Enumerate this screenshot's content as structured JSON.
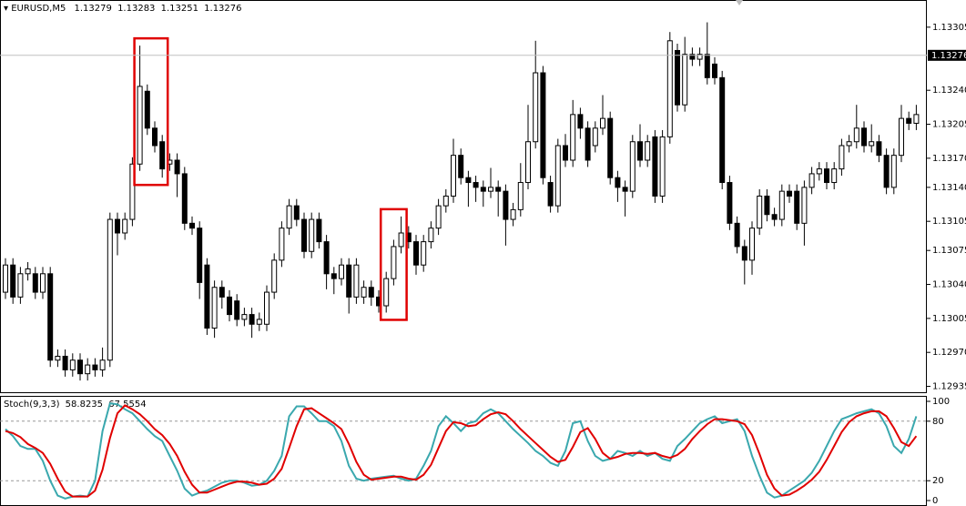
{
  "chart_data": [
    {
      "type": "candlestick",
      "title": "EURUSD,M5",
      "ohlc": [
        1.13279,
        1.13283,
        1.13251,
        1.13276
      ],
      "open": [
        1.13032,
        1.1306,
        1.13027,
        1.13051,
        1.13051,
        1.13032,
        1.13051,
        1.12962,
        1.12966,
        1.12952,
        1.12962,
        1.12948,
        1.12957,
        1.12952,
        1.12962,
        1.13107,
        1.13093,
        1.13107,
        1.13164,
        1.13239,
        1.13201,
        1.13187,
        1.13164,
        1.13168,
        1.13154,
        1.13103,
        1.13098,
        1.1306,
        1.12995,
        1.13037,
        1.13027,
        1.13023,
        1.13004,
        1.13009,
        1.12999,
        1.12999,
        1.13032,
        1.13065,
        1.13098,
        1.13121,
        1.13107,
        1.13074,
        1.13107,
        1.13084,
        1.13051,
        1.13046,
        1.1306,
        1.13027,
        1.13027,
        1.13037,
        1.13027,
        1.13018,
        1.13046,
        1.13079,
        1.13093,
        1.13084,
        1.1306,
        1.13084,
        1.13098,
        1.13121,
        1.13131,
        1.13173,
        1.1315,
        1.13145,
        1.1314,
        1.13136,
        1.1314,
        1.13136,
        1.13107,
        1.13117,
        1.13145,
        1.13187,
        1.13258,
        1.13145,
        1.13121,
        1.13183,
        1.13168,
        1.13215,
        1.13201,
        1.13183,
        1.13201,
        1.13211,
        1.1315,
        1.1314,
        1.13136,
        1.13187,
        1.13168,
        1.13192,
        1.13131,
        1.13192,
        1.13281,
        1.13225,
        1.13277,
        1.13272,
        1.13277,
        1.13267,
        1.13253,
        1.13145,
        1.13103,
        1.13079,
        1.13065,
        1.13098,
        1.13131,
        1.13112,
        1.13107,
        1.13136,
        1.13136,
        1.13103,
        1.1314,
        1.13154,
        1.13159,
        1.13145,
        1.13159,
        1.13183,
        1.13187,
        1.13201,
        1.13183,
        1.13187,
        1.13173,
        1.1314,
        1.13173,
        1.13211,
        1.13206
      ],
      "high": [
        1.13067,
        1.13067,
        1.13058,
        1.13063,
        1.13058,
        1.13058,
        1.13058,
        1.12973,
        1.12973,
        1.12969,
        1.12969,
        1.12964,
        1.12964,
        1.12975,
        1.13114,
        1.13114,
        1.13114,
        1.13171,
        1.13286,
        1.13246,
        1.13208,
        1.13194,
        1.13175,
        1.13175,
        1.13161,
        1.1311,
        1.13105,
        1.13067,
        1.13044,
        1.13044,
        1.13034,
        1.1303,
        1.13016,
        1.13016,
        1.13011,
        1.13039,
        1.13072,
        1.13105,
        1.13128,
        1.13128,
        1.13114,
        1.13114,
        1.13114,
        1.13091,
        1.13058,
        1.13067,
        1.13067,
        1.13067,
        1.13044,
        1.13044,
        1.13034,
        1.13053,
        1.13086,
        1.1311,
        1.131,
        1.13091,
        1.13091,
        1.13105,
        1.13128,
        1.13138,
        1.1319,
        1.1318,
        1.13157,
        1.13152,
        1.13147,
        1.1316,
        1.13147,
        1.13143,
        1.13124,
        1.13165,
        1.13225,
        1.13291,
        1.13265,
        1.13152,
        1.1319,
        1.13195,
        1.1323,
        1.13222,
        1.13208,
        1.13208,
        1.13235,
        1.13218,
        1.13157,
        1.13147,
        1.13194,
        1.13205,
        1.13194,
        1.13199,
        1.13199,
        1.133,
        1.13288,
        1.13295,
        1.13284,
        1.13284,
        1.1331,
        1.13274,
        1.1326,
        1.13152,
        1.1311,
        1.13086,
        1.13105,
        1.13138,
        1.13138,
        1.13119,
        1.13143,
        1.13143,
        1.13143,
        1.13147,
        1.13161,
        1.13166,
        1.13166,
        1.13166,
        1.1319,
        1.13194,
        1.13225,
        1.13208,
        1.13205,
        1.13194,
        1.1318,
        1.1318,
        1.13225,
        1.13218,
        1.13225
      ],
      "low": [
        1.13025,
        1.1302,
        1.1302,
        1.13044,
        1.13025,
        1.13025,
        1.12955,
        1.12955,
        1.12945,
        1.12945,
        1.12941,
        1.12941,
        1.12945,
        1.12945,
        1.12955,
        1.1307,
        1.13086,
        1.131,
        1.13157,
        1.13194,
        1.13176,
        1.1315,
        1.13157,
        1.1313,
        1.13096,
        1.13091,
        1.13025,
        1.12988,
        1.12985,
        1.13015,
        1.13002,
        1.12997,
        1.12997,
        1.12985,
        1.12992,
        1.12992,
        1.13025,
        1.13058,
        1.13091,
        1.131,
        1.13067,
        1.13067,
        1.13077,
        1.13035,
        1.1303,
        1.13039,
        1.1301,
        1.1302,
        1.1302,
        1.13018,
        1.13011,
        1.13011,
        1.13039,
        1.13072,
        1.13077,
        1.1305,
        1.13053,
        1.13077,
        1.13091,
        1.13114,
        1.13124,
        1.13143,
        1.1312,
        1.13125,
        1.1312,
        1.13129,
        1.1311,
        1.1308,
        1.131,
        1.1311,
        1.13138,
        1.1318,
        1.13143,
        1.13114,
        1.13114,
        1.13161,
        1.13161,
        1.1319,
        1.13161,
        1.13176,
        1.13194,
        1.13143,
        1.13125,
        1.1311,
        1.13129,
        1.13161,
        1.13161,
        1.13124,
        1.13124,
        1.13185,
        1.13218,
        1.13218,
        1.13265,
        1.13265,
        1.13246,
        1.13246,
        1.13138,
        1.13096,
        1.13072,
        1.1304,
        1.1305,
        1.13091,
        1.13105,
        1.131,
        1.131,
        1.13124,
        1.13096,
        1.1308,
        1.13133,
        1.13147,
        1.13138,
        1.13138,
        1.13152,
        1.13176,
        1.1318,
        1.13176,
        1.13176,
        1.13166,
        1.13133,
        1.13133,
        1.13166,
        1.13199,
        1.13199
      ],
      "close": [
        1.1306,
        1.13027,
        1.13051,
        1.13056,
        1.13032,
        1.13051,
        1.12962,
        1.12966,
        1.12952,
        1.12962,
        1.12948,
        1.12957,
        1.12952,
        1.12962,
        1.13107,
        1.13093,
        1.13107,
        1.13164,
        1.13244,
        1.13201,
        1.13183,
        1.13159,
        1.13168,
        1.13154,
        1.13103,
        1.13098,
        1.13042,
        1.12995,
        1.13037,
        1.13027,
        1.13009,
        1.13004,
        1.13009,
        1.12999,
        1.13004,
        1.13032,
        1.13065,
        1.13098,
        1.13121,
        1.13107,
        1.13074,
        1.13107,
        1.13084,
        1.13051,
        1.13046,
        1.1306,
        1.13027,
        1.1306,
        1.13037,
        1.13027,
        1.13018,
        1.13046,
        1.13079,
        1.13093,
        1.13084,
        1.1306,
        1.13084,
        1.13098,
        1.13121,
        1.13131,
        1.13173,
        1.1315,
        1.13145,
        1.1314,
        1.13136,
        1.1314,
        1.13136,
        1.13107,
        1.13117,
        1.13145,
        1.13187,
        1.13258,
        1.1315,
        1.13121,
        1.13183,
        1.13168,
        1.13215,
        1.13201,
        1.13168,
        1.13201,
        1.13211,
        1.1315,
        1.1314,
        1.13136,
        1.13187,
        1.13168,
        1.13187,
        1.13131,
        1.13192,
        1.13291,
        1.13225,
        1.13277,
        1.13272,
        1.13277,
        1.13253,
        1.13253,
        1.13145,
        1.13103,
        1.13079,
        1.13065,
        1.13098,
        1.13131,
        1.13112,
        1.13107,
        1.13136,
        1.13131,
        1.13103,
        1.1314,
        1.13154,
        1.13159,
        1.13145,
        1.13159,
        1.13183,
        1.13187,
        1.13201,
        1.13183,
        1.13187,
        1.13173,
        1.1314,
        1.13173,
        1.13211,
        1.13206,
        1.13215
      ],
      "current_price": 1.13276,
      "up_color": "#ffffff",
      "down_color": "#000000",
      "line_color": "#000000",
      "ylim": [
        1.12928,
        1.13333
      ],
      "yticks": [
        1.13305,
        {
          "value": 1.1324,
          "label": "1.13240"
        },
        1.13205,
        {
          "value": 1.1317,
          "label": "1.13170"
        },
        {
          "value": 1.1314,
          "label": "1.13140"
        },
        1.13105,
        1.13075,
        {
          "value": 1.1304,
          "label": "1.13040"
        },
        1.13005,
        {
          "value": 1.1297,
          "label": "1.12970"
        },
        1.12935
      ]
    },
    {
      "type": "line",
      "title": "Stoch(9,3,3)",
      "readings": [
        58.8235,
        67.5554
      ],
      "series": [
        {
          "color": "#3aa8ae",
          "values": [
            72,
            65,
            55,
            52,
            52,
            40,
            20,
            5,
            2,
            4,
            5,
            4,
            20,
            70,
            98,
            97,
            92,
            88,
            80,
            72,
            65,
            60,
            45,
            30,
            12,
            5,
            8,
            10,
            14,
            18,
            20,
            20,
            18,
            15,
            16,
            20,
            30,
            45,
            85,
            95,
            95,
            88,
            80,
            80,
            75,
            60,
            35,
            22,
            20,
            22,
            23,
            24,
            25,
            22,
            20,
            22,
            35,
            50,
            75,
            85,
            78,
            70,
            78,
            80,
            88,
            92,
            88,
            80,
            72,
            65,
            58,
            50,
            45,
            38,
            35,
            50,
            78,
            80,
            60,
            45,
            40,
            42,
            50,
            48,
            45,
            50,
            45,
            48,
            42,
            40,
            55,
            62,
            70,
            78,
            82,
            85,
            78,
            80,
            82,
            70,
            45,
            25,
            8,
            3,
            5,
            10,
            15,
            20,
            28,
            40,
            55,
            70,
            82,
            85,
            88,
            90,
            92,
            88,
            75,
            55,
            48,
            62,
            85
          ]
        },
        {
          "color": "#e00000",
          "values": [
            70,
            68,
            64,
            57,
            53,
            48,
            37,
            22,
            9,
            4,
            4,
            4,
            10,
            31,
            63,
            88,
            96,
            92,
            87,
            80,
            72,
            66,
            57,
            45,
            29,
            16,
            8,
            8,
            11,
            14,
            17,
            19,
            19,
            18,
            16,
            17,
            22,
            32,
            53,
            75,
            92,
            93,
            88,
            83,
            78,
            72,
            57,
            39,
            26,
            21,
            22,
            23,
            24,
            24,
            22,
            21,
            26,
            36,
            53,
            70,
            79,
            78,
            75,
            76,
            82,
            87,
            89,
            87,
            80,
            72,
            65,
            58,
            51,
            44,
            39,
            41,
            54,
            69,
            73,
            62,
            48,
            42,
            44,
            47,
            48,
            48,
            47,
            48,
            45,
            43,
            46,
            52,
            62,
            70,
            77,
            82,
            82,
            81,
            80,
            77,
            66,
            47,
            26,
            12,
            5,
            6,
            10,
            15,
            21,
            29,
            41,
            55,
            69,
            79,
            85,
            88,
            90,
            90,
            85,
            73,
            59,
            55,
            65
          ]
        }
      ],
      "levels": [
        80,
        20
      ],
      "ylim": [
        -5.5,
        104.6
      ],
      "yticks": [
        100,
        80,
        20,
        0
      ]
    }
  ]
}
